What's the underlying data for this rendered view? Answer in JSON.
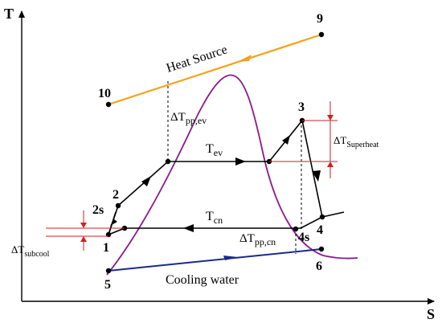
{
  "axes": {
    "y_label": "T",
    "x_label": "S"
  },
  "points": {
    "p1": "1",
    "p2": "2",
    "p2s": "2s",
    "p3": "3",
    "p4": "4",
    "p4s": "4s",
    "p5": "5",
    "p6": "6",
    "p9": "9",
    "p10": "10"
  },
  "labels": {
    "heat_source": "Heat Source",
    "cooling_water": "Cooling water",
    "t_ev_main": "T",
    "t_ev_sub": "ev",
    "t_cn_main": "T",
    "t_cn_sub": "cn",
    "dt_pp_ev_main": "ΔT",
    "dt_pp_ev_sub": "pp,ev",
    "dt_pp_cn_main": "ΔT",
    "dt_pp_cn_sub": "pp,cn",
    "dt_superheat_main": "ΔT",
    "dt_superheat_sub": "Superheat",
    "dt_subcool_main": "ΔT",
    "dt_subcool_sub": "subcool"
  },
  "colors": {
    "axis": "#000000",
    "heat_source": "#f4a21c",
    "cooling_water": "#1a2a8c",
    "saturation_dome": "#8b1a8b",
    "cycle": "#000000",
    "dimension": "#cc2222"
  }
}
